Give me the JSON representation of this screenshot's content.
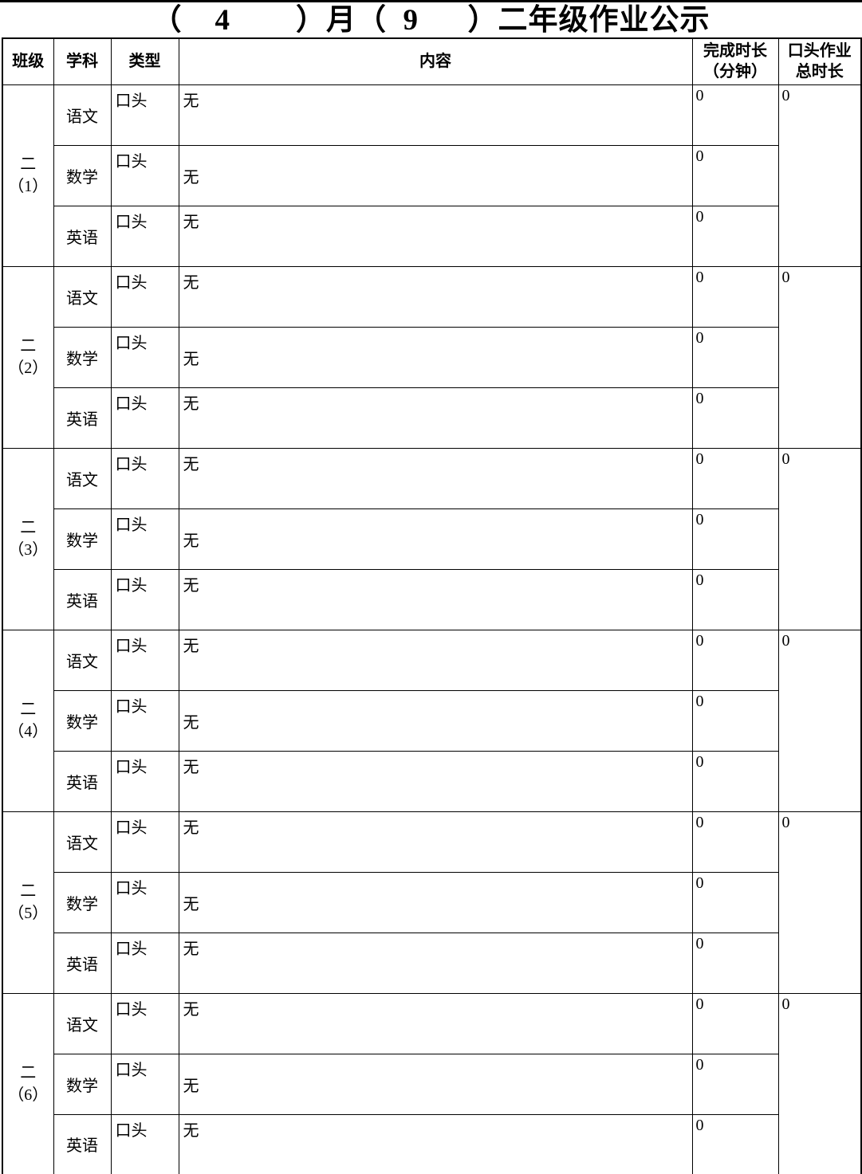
{
  "page": {
    "title": "（    4        ）月（  9      ）二年级作业公示"
  },
  "table": {
    "headers": {
      "class": "班级",
      "subject": "学科",
      "type": "类型",
      "content": "内容",
      "duration": [
        "完成时长",
        "（分钟）"
      ],
      "total": [
        "口头作业",
        "总时长"
      ]
    },
    "groups": [
      {
        "class_name": [
          "二",
          "（1）"
        ],
        "oral_total": "0",
        "rows": [
          {
            "subject": "语文",
            "type": "口头",
            "content": "无",
            "duration": "0",
            "content_align": "top"
          },
          {
            "subject": "数学",
            "type": "口头",
            "content": "无",
            "duration": "0",
            "content_align": "middle"
          },
          {
            "subject": "英语",
            "type": "口头",
            "content": "无",
            "duration": "0",
            "content_align": "top"
          }
        ]
      },
      {
        "class_name": [
          "二",
          "（2）"
        ],
        "oral_total": "0",
        "rows": [
          {
            "subject": "语文",
            "type": "口头",
            "content": "无",
            "duration": "0",
            "content_align": "top"
          },
          {
            "subject": "数学",
            "type": "口头",
            "content": "无",
            "duration": "0",
            "content_align": "middle"
          },
          {
            "subject": "英语",
            "type": "口头",
            "content": "无",
            "duration": "0",
            "content_align": "top"
          }
        ]
      },
      {
        "class_name": [
          "二",
          "（3）"
        ],
        "oral_total": "0",
        "rows": [
          {
            "subject": "语文",
            "type": "口头",
            "content": "无",
            "duration": "0",
            "content_align": "top"
          },
          {
            "subject": "数学",
            "type": "口头",
            "content": "无",
            "duration": "0",
            "content_align": "middle"
          },
          {
            "subject": "英语",
            "type": "口头",
            "content": "无",
            "duration": "0",
            "content_align": "top"
          }
        ]
      },
      {
        "class_name": [
          "二",
          "（4）"
        ],
        "oral_total": "0",
        "rows": [
          {
            "subject": "语文",
            "type": "口头",
            "content": "无",
            "duration": "0",
            "content_align": "top"
          },
          {
            "subject": "数学",
            "type": "口头",
            "content": "无",
            "duration": "0",
            "content_align": "middle"
          },
          {
            "subject": "英语",
            "type": "口头",
            "content": "无",
            "duration": "0",
            "content_align": "top"
          }
        ]
      },
      {
        "class_name": [
          "二",
          "（5）"
        ],
        "oral_total": "0",
        "rows": [
          {
            "subject": "语文",
            "type": "口头",
            "content": "无",
            "duration": "0",
            "content_align": "top"
          },
          {
            "subject": "数学",
            "type": "口头",
            "content": "无",
            "duration": "0",
            "content_align": "middle"
          },
          {
            "subject": "英语",
            "type": "口头",
            "content": "无",
            "duration": "0",
            "content_align": "top"
          }
        ]
      },
      {
        "class_name": [
          "二",
          "（6）"
        ],
        "oral_total": "0",
        "rows": [
          {
            "subject": "语文",
            "type": "口头",
            "content": "无",
            "duration": "0",
            "content_align": "top"
          },
          {
            "subject": "数学",
            "type": "口头",
            "content": "无",
            "duration": "0",
            "content_align": "middle"
          },
          {
            "subject": "英语",
            "type": "口头",
            "content": "无",
            "duration": "0",
            "content_align": "top"
          }
        ]
      }
    ]
  },
  "colors": {
    "background": "#ffffff",
    "border": "#000000",
    "text": "#000000"
  }
}
